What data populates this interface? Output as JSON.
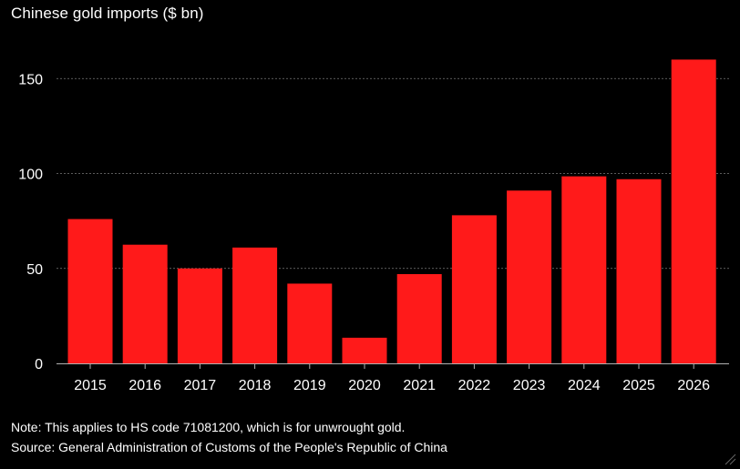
{
  "title": "Chinese gold imports ($ bn)",
  "note": "Note: This applies to HS code 71081200, which is for unwrought gold.",
  "source": "Source: General Administration of Customs of the People's Republic of China",
  "colors": {
    "bar": "#ff1a1a",
    "background": "#000000",
    "grid": "#7a7a7a",
    "text": "#ffffff"
  },
  "chart_data": {
    "type": "bar",
    "title": "Chinese gold imports ($ bn)",
    "xlabel": "",
    "ylabel": "",
    "categories": [
      "2015",
      "2016",
      "2017",
      "2018",
      "2019",
      "2020",
      "2021",
      "2022",
      "2023",
      "2024",
      "2025",
      "2026"
    ],
    "values": [
      76,
      62.5,
      50,
      61,
      42,
      13.5,
      47,
      78,
      91,
      98.5,
      97,
      160
    ],
    "ylim": [
      0,
      165
    ],
    "yticks": [
      0,
      50,
      100,
      150
    ],
    "grid": true,
    "legend": "none"
  }
}
